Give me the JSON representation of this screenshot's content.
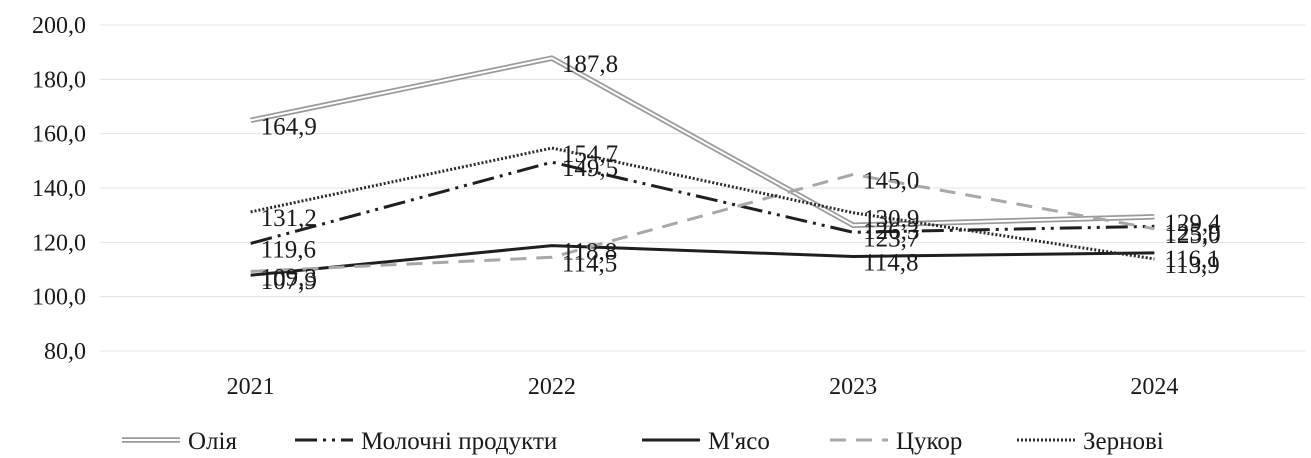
{
  "chart_data": {
    "type": "line",
    "categories": [
      "2021",
      "2022",
      "2023",
      "2024"
    ],
    "ylim": [
      80,
      200
    ],
    "yticks": [
      "80,0",
      "100,0",
      "120,0",
      "140,0",
      "160,0",
      "180,0",
      "200,0"
    ],
    "grid": true,
    "legend_position": "bottom",
    "series": [
      {
        "name": "Олія",
        "values": [
          164.9,
          187.8,
          126.3,
          129.4
        ],
        "labels": [
          "164,9",
          "187,8",
          "126,3",
          "129,4"
        ],
        "color": "#9a9a9a",
        "style": "double"
      },
      {
        "name": "Молочні продукти",
        "values": [
          119.6,
          149.5,
          123.7,
          125.9
        ],
        "labels": [
          "119,6",
          "149,5",
          "123,7",
          "125,9"
        ],
        "color": "#1f1f1f",
        "style": "dashdot"
      },
      {
        "name": "М'ясо",
        "values": [
          107.9,
          118.8,
          114.8,
          116.1
        ],
        "labels": [
          "107,9",
          "118,8",
          "114,8",
          "116,1"
        ],
        "color": "#1f1f1f",
        "style": "solid"
      },
      {
        "name": "Цукор",
        "values": [
          109.3,
          114.5,
          145.0,
          125.0
        ],
        "labels": [
          "109,3",
          "114,5",
          "145,0",
          "125,0"
        ],
        "color": "#a8a8a8",
        "style": "dashed"
      },
      {
        "name": "Зернові",
        "values": [
          131.2,
          154.7,
          130.9,
          113.9
        ],
        "labels": [
          "131,2",
          "154,7",
          "130,9",
          "113,9"
        ],
        "color": "#2a2a2a",
        "style": "dotted"
      }
    ]
  }
}
